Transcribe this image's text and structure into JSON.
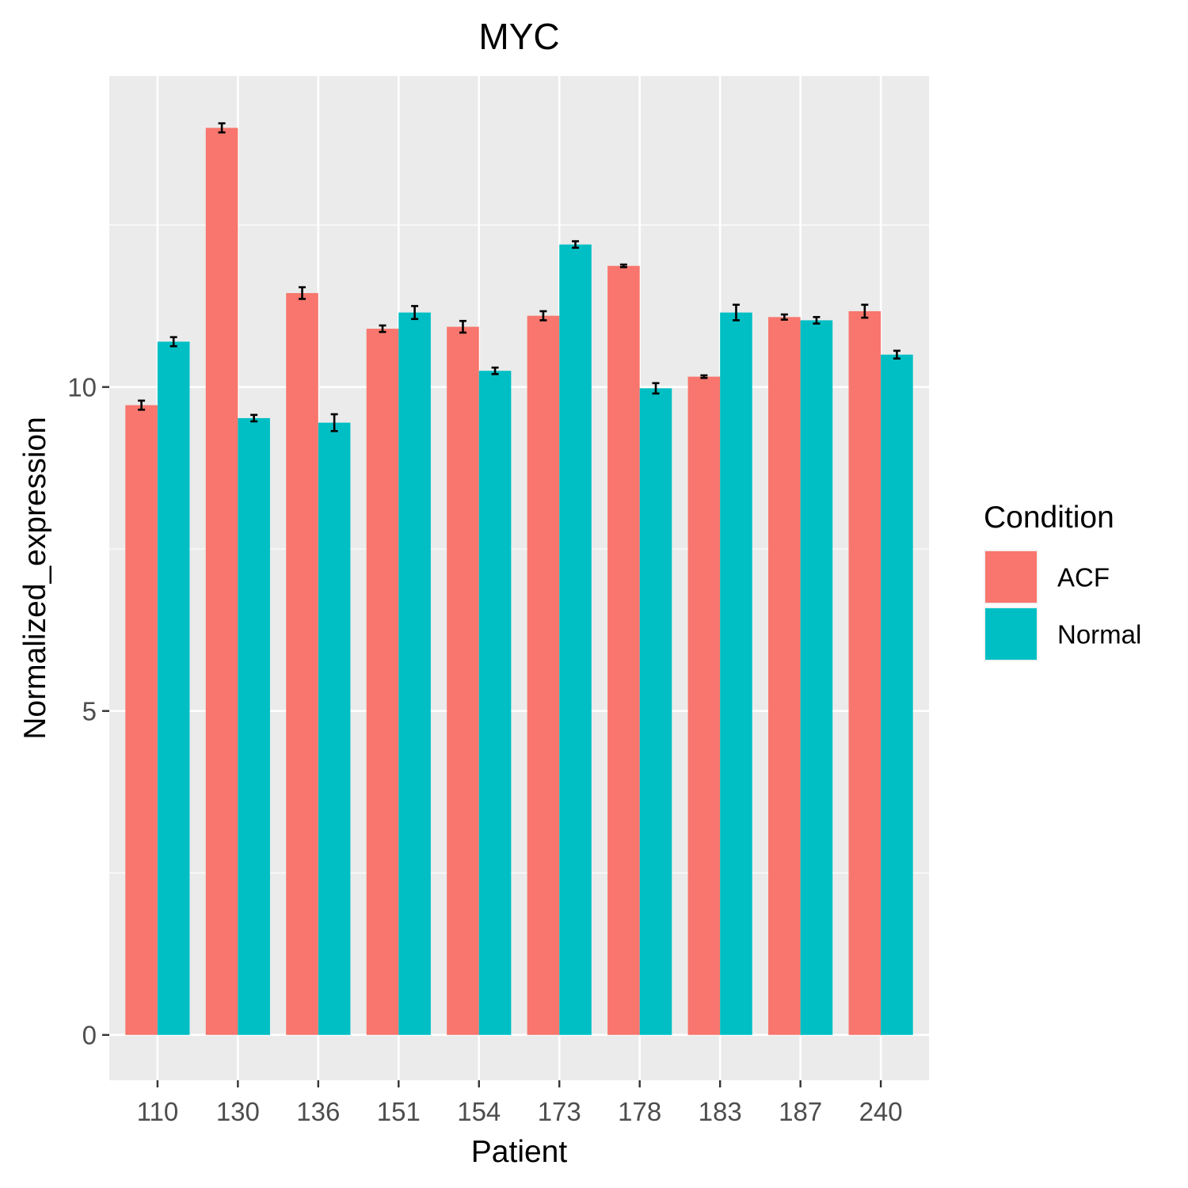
{
  "chart_data": {
    "type": "bar",
    "title": "MYC",
    "xlabel": "Patient",
    "ylabel": "Normalized_expression",
    "categories": [
      "110",
      "130",
      "136",
      "151",
      "154",
      "173",
      "178",
      "183",
      "187",
      "240"
    ],
    "series": [
      {
        "name": "ACF",
        "color": "#F8766D",
        "values": [
          9.72,
          14.0,
          11.45,
          10.9,
          10.93,
          11.1,
          11.87,
          10.16,
          11.08,
          11.17
        ],
        "errors": [
          0.07,
          0.07,
          0.09,
          0.05,
          0.09,
          0.07,
          0.02,
          0.02,
          0.04,
          0.1
        ]
      },
      {
        "name": "Normal",
        "color": "#00BFC4",
        "values": [
          10.7,
          9.52,
          9.45,
          11.15,
          10.25,
          12.2,
          9.98,
          11.15,
          11.03,
          10.5
        ],
        "errors": [
          0.07,
          0.05,
          0.13,
          0.1,
          0.05,
          0.05,
          0.08,
          0.12,
          0.05,
          0.06
        ]
      }
    ],
    "yticks": [
      0,
      5,
      10
    ],
    "ylim": [
      -0.7,
      14.8
    ],
    "grid": true,
    "legend": {
      "title": "Condition",
      "placement": "right"
    }
  }
}
